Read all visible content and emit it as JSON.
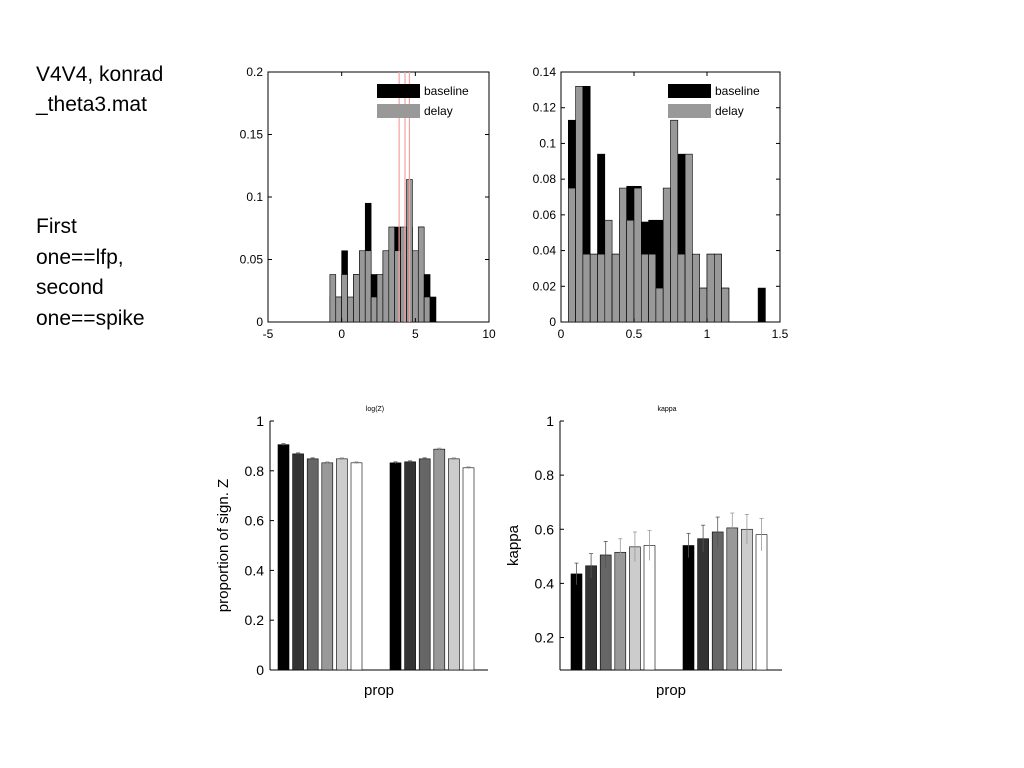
{
  "slide": {
    "title_lines": [
      "V4V4, konrad",
      "_theta3.mat"
    ],
    "note_lines": [
      "First",
      "one==lfp,",
      "second",
      "one==spike"
    ]
  },
  "colors": {
    "baseline": "#000000",
    "delay": "#999999",
    "marker_lines": "#f4a0a0",
    "bar_shades": [
      "#000000",
      "#333333",
      "#666666",
      "#999999",
      "#cccccc",
      "#ffffff"
    ]
  },
  "chart_data": [
    {
      "type": "bar",
      "subtype": "histogram",
      "xlim": [
        -5,
        10
      ],
      "ylim": [
        0,
        0.2
      ],
      "xticks": [
        "-5",
        "0",
        "5",
        "10"
      ],
      "yticks": [
        "0",
        "0.05",
        "0.1",
        "0.15",
        "0.2"
      ],
      "legend": [
        "baseline",
        "delay"
      ],
      "legend_position": "top-right",
      "bin_width": 0.4,
      "x": [
        -0.6,
        -0.2,
        0.2,
        0.6,
        1.0,
        1.4,
        1.8,
        2.2,
        2.6,
        3.0,
        3.4,
        3.8,
        4.2,
        4.6,
        5.0,
        5.4,
        5.8,
        6.2
      ],
      "series": [
        {
          "name": "baseline",
          "values": [
            0.02,
            0.02,
            0.057,
            0.0,
            0.038,
            0.057,
            0.095,
            0.038,
            0.02,
            0.057,
            0.038,
            0.076,
            0.057,
            0.076,
            0.038,
            0.076,
            0.038,
            0.02
          ]
        },
        {
          "name": "delay",
          "values": [
            0.038,
            0.02,
            0.038,
            0.02,
            0.038,
            0.057,
            0.057,
            0.02,
            0.038,
            0.057,
            0.076,
            0.057,
            0.076,
            0.114,
            0.057,
            0.076,
            0.02,
            0.0
          ]
        }
      ],
      "vertical_lines": [
        3.9,
        4.3,
        4.6
      ]
    },
    {
      "type": "bar",
      "subtype": "histogram",
      "xlim": [
        0,
        1.5
      ],
      "ylim": [
        0,
        0.14
      ],
      "xticks": [
        "0",
        "0.5",
        "1",
        "1.5"
      ],
      "yticks": [
        "0",
        "0.02",
        "0.04",
        "0.06",
        "0.08",
        "0.1",
        "0.12",
        "0.14"
      ],
      "legend": [
        "baseline",
        "delay"
      ],
      "legend_position": "top-right",
      "bin_width": 0.05,
      "x": [
        0.075,
        0.125,
        0.175,
        0.225,
        0.275,
        0.325,
        0.375,
        0.425,
        0.475,
        0.525,
        0.575,
        0.625,
        0.675,
        0.725,
        0.775,
        0.825,
        0.875,
        0.925,
        0.975,
        1.025,
        1.075,
        1.125,
        1.175,
        1.225,
        1.275,
        1.325,
        1.375,
        1.425,
        1.475
      ],
      "series": [
        {
          "name": "baseline",
          "values": [
            0.113,
            0.076,
            0.132,
            0.038,
            0.094,
            0.019,
            0.038,
            0.057,
            0.076,
            0.076,
            0.056,
            0.057,
            0.057,
            0.019,
            0.038,
            0.094,
            0.038,
            0.019,
            0.019,
            0.038,
            0.038,
            0.019,
            0.0,
            0.0,
            0.0,
            0.0,
            0.019,
            0.0,
            0.0
          ]
        },
        {
          "name": "delay",
          "values": [
            0.075,
            0.132,
            0.038,
            0.038,
            0.038,
            0.057,
            0.038,
            0.075,
            0.057,
            0.075,
            0.038,
            0.038,
            0.019,
            0.075,
            0.113,
            0.038,
            0.094,
            0.038,
            0.019,
            0.038,
            0.038,
            0.019,
            0.0,
            0.0,
            0.0,
            0.0,
            0.0,
            0.0,
            0.0
          ]
        }
      ]
    },
    {
      "type": "bar",
      "title": "log(Z)",
      "xlabel": "prop",
      "ylabel": "proportion of sign. Z",
      "ylim": [
        0,
        1
      ],
      "yticks": [
        "0",
        "0.2",
        "0.4",
        "0.6",
        "0.8",
        "1"
      ],
      "categories": [
        "",
        ""
      ],
      "series": [
        {
          "values": [
            0.905,
            0.832
          ],
          "errors": [
            0.004,
            0.004
          ]
        },
        {
          "values": [
            0.868,
            0.836
          ],
          "errors": [
            0.004,
            0.004
          ]
        },
        {
          "values": [
            0.848,
            0.848
          ],
          "errors": [
            0.004,
            0.004
          ]
        },
        {
          "values": [
            0.832,
            0.887
          ],
          "errors": [
            0.004,
            0.004
          ]
        },
        {
          "values": [
            0.848,
            0.848
          ],
          "errors": [
            0.004,
            0.004
          ]
        },
        {
          "values": [
            0.832,
            0.812
          ],
          "errors": [
            0.004,
            0.004
          ]
        }
      ]
    },
    {
      "type": "bar",
      "title": "kappa",
      "xlabel": "prop",
      "ylabel": "kappa",
      "ylim": [
        0.08,
        1
      ],
      "yticks": [
        "0.2",
        "0.4",
        "0.6",
        "0.8",
        "1"
      ],
      "categories": [
        "",
        ""
      ],
      "series": [
        {
          "values": [
            0.435,
            0.54
          ],
          "errors": [
            0.04,
            0.045
          ]
        },
        {
          "values": [
            0.465,
            0.565
          ],
          "errors": [
            0.045,
            0.05
          ]
        },
        {
          "values": [
            0.505,
            0.59
          ],
          "errors": [
            0.05,
            0.055
          ]
        },
        {
          "values": [
            0.515,
            0.605
          ],
          "errors": [
            0.05,
            0.055
          ]
        },
        {
          "values": [
            0.535,
            0.6
          ],
          "errors": [
            0.055,
            0.055
          ]
        },
        {
          "values": [
            0.54,
            0.58
          ],
          "errors": [
            0.055,
            0.06
          ]
        }
      ]
    }
  ]
}
